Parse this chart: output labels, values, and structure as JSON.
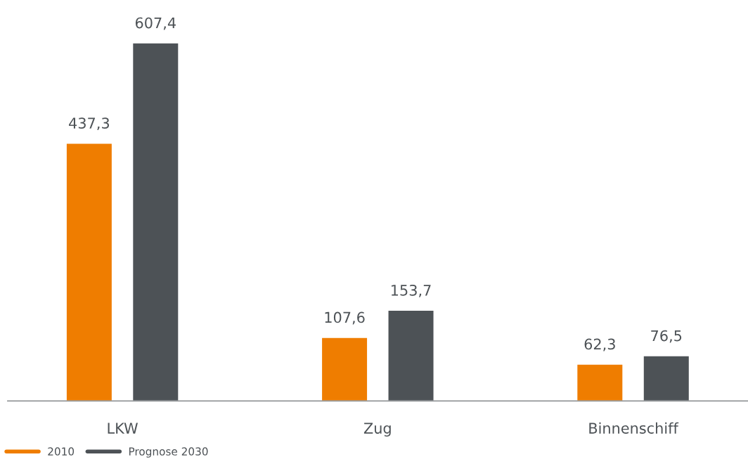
{
  "chart_data": {
    "type": "bar",
    "categories": [
      "LKW",
      "Zug",
      "Binnenschiff"
    ],
    "series": [
      {
        "name": "2010",
        "color": "#ef7d00",
        "values": [
          437.3,
          107.6,
          62.3
        ],
        "value_labels": [
          "437,3",
          "107,6",
          "62,3"
        ]
      },
      {
        "name": "Prognose 2030",
        "color": "#4d5256",
        "values": [
          607.4,
          153.7,
          76.5
        ],
        "value_labels": [
          "607,4",
          "153,7",
          "76,5"
        ]
      }
    ],
    "legend": "bottom left",
    "grid": false
  }
}
